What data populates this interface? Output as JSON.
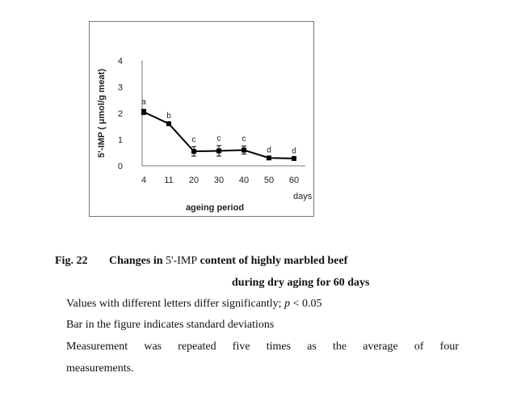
{
  "chart_data": {
    "type": "line",
    "title": "",
    "xlabel": "ageing period",
    "x_unit": "days",
    "ylabel": "5'-IMP ( μmol/g meat)",
    "ylim": [
      0,
      4
    ],
    "yticks": [
      "0",
      "1",
      "2",
      "3",
      "4"
    ],
    "grid": false,
    "legend": "none",
    "categories": [
      "4",
      "11",
      "20",
      "30",
      "40",
      "50",
      "60"
    ],
    "series": [
      {
        "name": "5'-IMP",
        "values": [
          2.05,
          1.6,
          0.55,
          0.57,
          0.6,
          0.3,
          0.28
        ],
        "errors": [
          0.1,
          0.03,
          0.18,
          0.2,
          0.15,
          0.03,
          0.02
        ],
        "letters": [
          "a",
          "b",
          "c",
          "c",
          "c",
          "d",
          "d"
        ]
      }
    ]
  },
  "caption": {
    "fig_no": "Fig. 22",
    "prefix": "Changes in ",
    "compound": "5'-IMP",
    "suffix": " content of highly marbled beef",
    "line2": "during dry aging for 60 days"
  },
  "notes": {
    "significance_prefix": "Values with different letters differ significantly; ",
    "p_symbol": "p",
    "significance_suffix": " < 0.05",
    "error_bars": "Bar in the figure indicates standard deviations",
    "measurement_1": "Measurement was repeated five times as the average of four",
    "measurement_2": "measurements."
  }
}
